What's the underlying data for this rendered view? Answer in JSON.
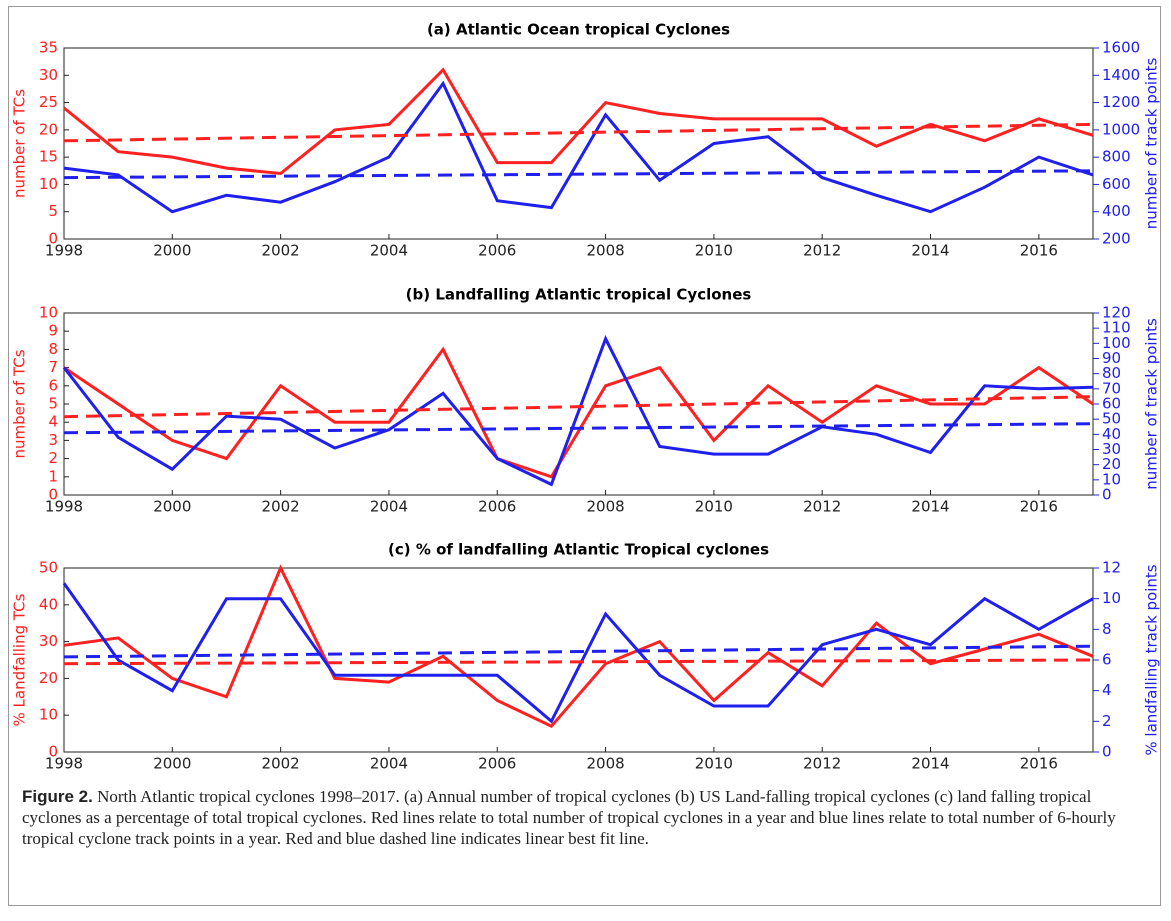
{
  "chart_data": [
    {
      "type": "line",
      "title": "(a) Atlantic Ocean tropical Cyclones",
      "ylabel": "number of TCs",
      "y2label": "number of track points",
      "x": [
        1998,
        1999,
        2000,
        2001,
        2002,
        2003,
        2004,
        2005,
        2006,
        2007,
        2008,
        2009,
        2010,
        2011,
        2012,
        2013,
        2014,
        2015,
        2016,
        2017
      ],
      "xlim": [
        1998,
        2017
      ],
      "xticks": [
        1998,
        2000,
        2002,
        2004,
        2006,
        2008,
        2010,
        2012,
        2014,
        2016
      ],
      "ylim": [
        0,
        35
      ],
      "yticks": [
        0,
        5,
        10,
        15,
        20,
        25,
        30,
        35
      ],
      "y2lim": [
        200,
        1600
      ],
      "y2ticks": [
        200,
        400,
        600,
        800,
        1000,
        1200,
        1400,
        1600
      ],
      "series": [
        {
          "color": "#ff2020",
          "values": [
            24,
            16,
            15,
            13,
            12,
            20,
            21,
            31,
            14,
            14,
            25,
            23,
            22,
            22,
            22,
            17,
            21,
            18,
            22,
            19
          ]
        },
        {
          "color": "#2020ee",
          "axis": "y2",
          "values": [
            720,
            670,
            400,
            520,
            470,
            620,
            800,
            1340,
            480,
            430,
            1110,
            630,
            900,
            950,
            650,
            520,
            400,
            580,
            800,
            670
          ]
        },
        {
          "color": "#ff2020",
          "dashed": true,
          "x": [
            1998,
            2017
          ],
          "values": [
            18,
            21
          ]
        },
        {
          "color": "#2020ee",
          "dashed": true,
          "axis": "y2",
          "x": [
            1998,
            2017
          ],
          "values": [
            650,
            700
          ]
        }
      ]
    },
    {
      "type": "line",
      "title": "(b) Landfalling Atlantic tropical Cyclones",
      "ylabel": "number of TCs",
      "y2label": "number of track points",
      "x": [
        1998,
        1999,
        2000,
        2001,
        2002,
        2003,
        2004,
        2005,
        2006,
        2007,
        2008,
        2009,
        2010,
        2011,
        2012,
        2013,
        2014,
        2015,
        2016,
        2017
      ],
      "xlim": [
        1998,
        2017
      ],
      "xticks": [
        1998,
        2000,
        2002,
        2004,
        2006,
        2008,
        2010,
        2012,
        2014,
        2016
      ],
      "ylim": [
        0,
        10
      ],
      "yticks": [
        0,
        1,
        2,
        3,
        4,
        5,
        6,
        7,
        8,
        9,
        10
      ],
      "y2lim": [
        0,
        120
      ],
      "y2ticks": [
        0,
        10,
        20,
        30,
        40,
        50,
        60,
        70,
        80,
        90,
        100,
        110,
        120
      ],
      "series": [
        {
          "color": "#ff2020",
          "values": [
            7,
            5,
            3,
            2,
            6,
            4,
            4,
            8,
            2,
            1,
            6,
            7,
            3,
            6,
            4,
            6,
            5,
            5,
            7,
            5
          ]
        },
        {
          "color": "#2020ee",
          "axis": "y2",
          "values": [
            84,
            38,
            17,
            52,
            50,
            31,
            43,
            67,
            24,
            7,
            103,
            32,
            27,
            27,
            45,
            40,
            28,
            72,
            70,
            71
          ]
        },
        {
          "color": "#ff2020",
          "dashed": true,
          "x": [
            1998,
            2017
          ],
          "values": [
            4.3,
            5.4
          ]
        },
        {
          "color": "#2020ee",
          "dashed": true,
          "axis": "y2",
          "x": [
            1998,
            2017
          ],
          "values": [
            41,
            47
          ]
        }
      ]
    },
    {
      "type": "line",
      "title": "(c) % of landfalling Atlantic Tropical cyclones",
      "ylabel": "% Landfalling TCs",
      "y2label": "% landfalling track points",
      "x": [
        1998,
        1999,
        2000,
        2001,
        2002,
        2003,
        2004,
        2005,
        2006,
        2007,
        2008,
        2009,
        2010,
        2011,
        2012,
        2013,
        2014,
        2015,
        2016,
        2017
      ],
      "xlim": [
        1998,
        2017
      ],
      "xticks": [
        1998,
        2000,
        2002,
        2004,
        2006,
        2008,
        2010,
        2012,
        2014,
        2016
      ],
      "ylim": [
        0,
        50
      ],
      "yticks": [
        0,
        10,
        20,
        30,
        40,
        50
      ],
      "y2lim": [
        0,
        12
      ],
      "y2ticks": [
        0,
        2,
        4,
        6,
        8,
        10,
        12
      ],
      "series": [
        {
          "color": "#ff2020",
          "values": [
            29,
            31,
            20,
            15,
            50,
            20,
            19,
            26,
            14,
            7,
            24,
            30,
            14,
            27,
            18,
            35,
            24,
            28,
            32,
            26
          ]
        },
        {
          "color": "#2020ee",
          "axis": "y2",
          "values": [
            11,
            6,
            4,
            10,
            10,
            5,
            5,
            5,
            5,
            2,
            9,
            5,
            3,
            3,
            7,
            8,
            7,
            10,
            8,
            10
          ]
        },
        {
          "color": "#ff2020",
          "dashed": true,
          "x": [
            1998,
            2017
          ],
          "values": [
            24,
            25
          ]
        },
        {
          "color": "#2020ee",
          "dashed": true,
          "axis": "y2",
          "x": [
            1998,
            2017
          ],
          "values": [
            6.2,
            6.9
          ]
        }
      ]
    }
  ],
  "caption": {
    "label": "Figure 2.",
    "text": " North Atlantic tropical cyclones 1998–2017. (a) Annual number of tropical cyclones (b) US Land-falling tropical cyclones (c) land falling tropical cyclones as a percentage of total tropical cyclones. Red lines relate to total number of tropical cyclones in a year and blue lines relate to total number of 6-hourly tropical cyclone track points in a year. Red and blue dashed line indicates linear best fit line."
  }
}
